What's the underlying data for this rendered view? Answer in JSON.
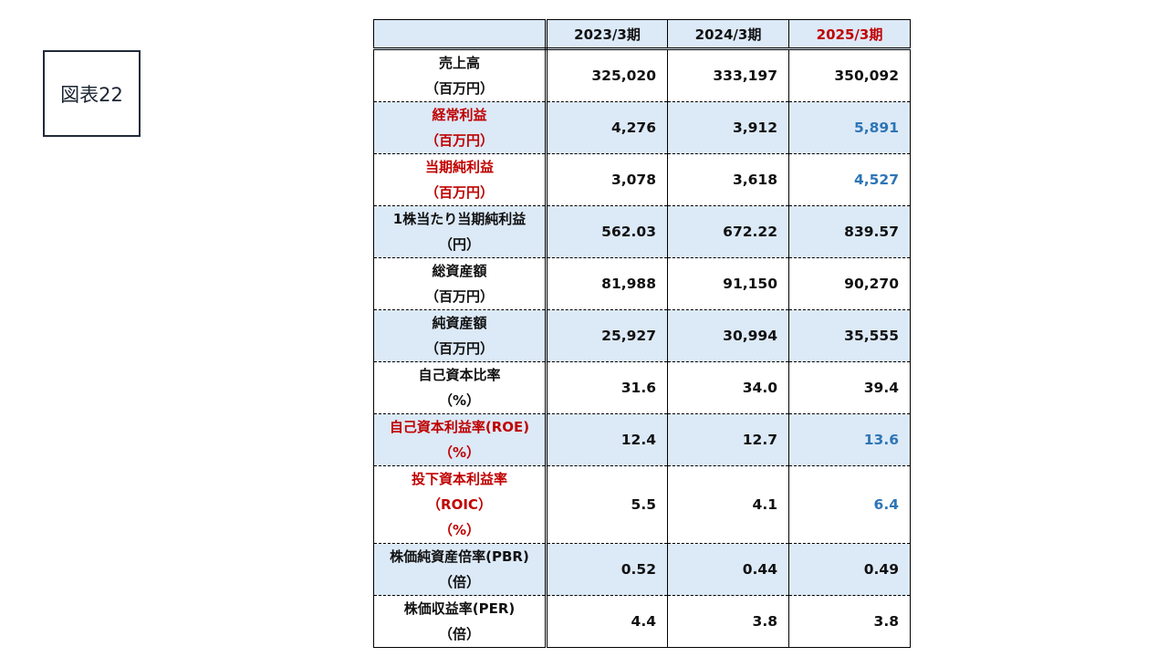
{
  "figure_label": "図表22",
  "colors": {
    "highlight_red": "#c00000",
    "highlight_blue": "#2e75b6",
    "shade": "#dce9f7"
  },
  "table": {
    "headers": [
      "",
      "2023/3期",
      "2024/3期",
      "2025/3期"
    ],
    "rows": [
      {
        "label": [
          "売上高",
          "（百万円）"
        ],
        "values": [
          "325,020",
          "333,197",
          "350,092"
        ]
      },
      {
        "label": [
          "経常利益",
          "（百万円）"
        ],
        "values": [
          "4,276",
          "3,912",
          "5,891"
        ]
      },
      {
        "label": [
          "当期純利益",
          "（百万円）"
        ],
        "values": [
          "3,078",
          "3,618",
          "4,527"
        ]
      },
      {
        "label": [
          "1株当たり当期純利益",
          "（円）"
        ],
        "values": [
          "562.03",
          "672.22",
          "839.57"
        ]
      },
      {
        "label": [
          "総資産額",
          "（百万円）"
        ],
        "values": [
          "81,988",
          "91,150",
          "90,270"
        ]
      },
      {
        "label": [
          "純資産額",
          "（百万円）"
        ],
        "values": [
          "25,927",
          "30,994",
          "35,555"
        ]
      },
      {
        "label": [
          "自己資本比率",
          "（%）"
        ],
        "values": [
          "31.6",
          "34.0",
          "39.4"
        ]
      },
      {
        "label": [
          "自己資本利益率(ROE)",
          "（%）"
        ],
        "values": [
          "12.4",
          "12.7",
          "13.6"
        ]
      },
      {
        "label": [
          "投下資本利益率",
          "（ROIC）",
          "（%）"
        ],
        "values": [
          "5.5",
          "4.1",
          "6.4"
        ]
      },
      {
        "label": [
          "株価純資産倍率(PBR)",
          "（倍）"
        ],
        "values": [
          "0.52",
          "0.44",
          "0.49"
        ]
      },
      {
        "label": [
          "株価収益率(PER)",
          "（倍）"
        ],
        "values": [
          "4.4",
          "3.8",
          "3.8"
        ]
      }
    ]
  }
}
